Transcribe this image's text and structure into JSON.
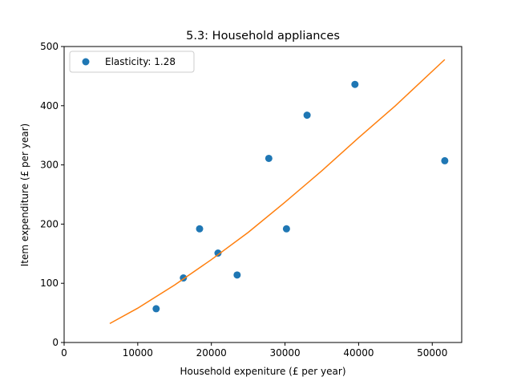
{
  "chart_data": {
    "type": "scatter",
    "title": "5.3: Household appliances",
    "xlabel": "Household expeniture (£ per year)",
    "ylabel": "Item expenditure (£ per year)",
    "xlim": [
      0,
      54000
    ],
    "ylim": [
      0,
      500
    ],
    "xticks": [
      0,
      10000,
      20000,
      30000,
      40000,
      50000
    ],
    "yticks": [
      0,
      100,
      200,
      300,
      400,
      500
    ],
    "grid": false,
    "legend_position": "top-left",
    "series": [
      {
        "name": "Elasticity: 1.28",
        "kind": "scatter",
        "color": "#1f77b4",
        "points": [
          {
            "x": 12500,
            "y": 57
          },
          {
            "x": 16200,
            "y": 109
          },
          {
            "x": 18400,
            "y": 192
          },
          {
            "x": 20900,
            "y": 151
          },
          {
            "x": 23500,
            "y": 114
          },
          {
            "x": 27800,
            "y": 311
          },
          {
            "x": 30200,
            "y": 192
          },
          {
            "x": 33000,
            "y": 384
          },
          {
            "x": 39500,
            "y": 436
          },
          {
            "x": 51700,
            "y": 307
          }
        ]
      },
      {
        "kind": "fit-line",
        "color": "#ff7f0e",
        "points": [
          {
            "x": 6200,
            "y": 32
          },
          {
            "x": 10000,
            "y": 58
          },
          {
            "x": 15000,
            "y": 97
          },
          {
            "x": 20000,
            "y": 140
          },
          {
            "x": 25000,
            "y": 186
          },
          {
            "x": 30000,
            "y": 237
          },
          {
            "x": 35000,
            "y": 290
          },
          {
            "x": 40000,
            "y": 346
          },
          {
            "x": 45000,
            "y": 400
          },
          {
            "x": 51700,
            "y": 478
          }
        ]
      }
    ]
  }
}
